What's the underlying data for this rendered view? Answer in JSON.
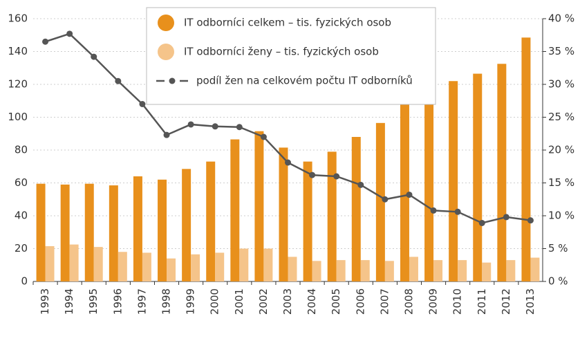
{
  "chart_data": {
    "type": "bar_line",
    "categories": [
      "1993",
      "1994",
      "1995",
      "1996",
      "1997",
      "1998",
      "1999",
      "2000",
      "2001",
      "2002",
      "2003",
      "2004",
      "2005",
      "2006",
      "2007",
      "2008",
      "2009",
      "2010",
      "2011",
      "2012",
      "2013"
    ],
    "series": [
      {
        "name": "IT odborníci celkem – tis. fyzických osob",
        "type": "bar",
        "color": "#e8901c",
        "values": [
          59.5,
          59,
          59.5,
          58.5,
          64,
          62,
          68.5,
          73,
          86.5,
          91.5,
          81.5,
          73,
          79,
          88,
          96.5,
          111,
          114,
          122,
          126.5,
          132.5,
          148.5
        ]
      },
      {
        "name": "IT odborníci ženy – tis. fyzických osob",
        "type": "bar",
        "color": "#f5c48a",
        "values": [
          21.5,
          22.5,
          21,
          18,
          17.5,
          14,
          16.5,
          17.5,
          20,
          20,
          15,
          12.5,
          13,
          13,
          12.5,
          15,
          13,
          13,
          11.5,
          13,
          14.5
        ]
      },
      {
        "name": "podíl žen na celkovém počtu IT odborníků",
        "type": "line",
        "color": "#555555",
        "axis": "y2",
        "values": [
          36.5,
          37.7,
          34.2,
          30.5,
          27,
          22.3,
          23.9,
          23.6,
          23.5,
          22,
          18.1,
          16.2,
          16,
          14.7,
          12.5,
          13.2,
          10.8,
          10.6,
          8.9,
          9.8,
          9.3
        ]
      }
    ],
    "ylim": [
      0,
      160
    ],
    "yticks": [
      0,
      20,
      40,
      60,
      80,
      100,
      120,
      140,
      160
    ],
    "y2lim": [
      0,
      40
    ],
    "y2ticks": [
      {
        "value": 0,
        "label": "0 %"
      },
      {
        "value": 5,
        "label": "5 %"
      },
      {
        "value": 10,
        "label": "10 %"
      },
      {
        "value": 15,
        "label": "15 %"
      },
      {
        "value": 20,
        "label": "20 %"
      },
      {
        "value": 25,
        "label": "25 %"
      },
      {
        "value": 30,
        "label": "30 %"
      },
      {
        "value": 35,
        "label": "35 %"
      },
      {
        "value": 40,
        "label": "40 %"
      }
    ],
    "grid": true,
    "legend": "top"
  }
}
